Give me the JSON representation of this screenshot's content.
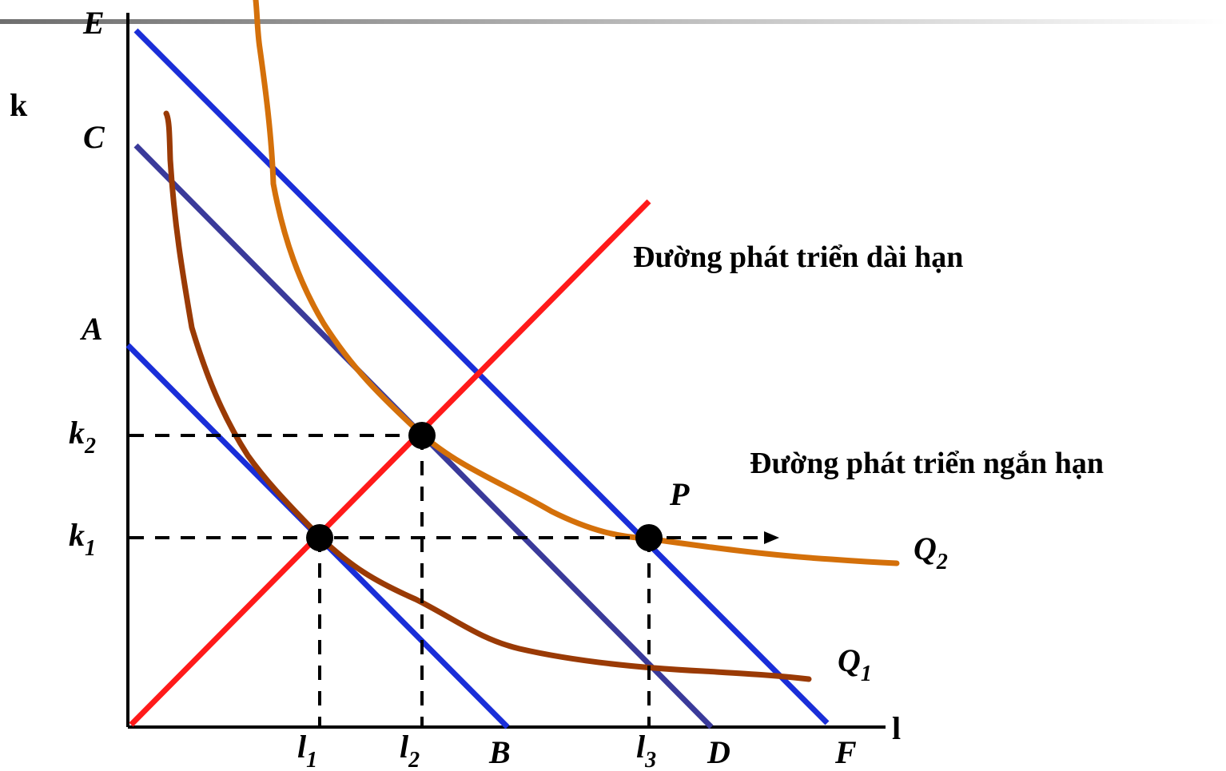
{
  "axes": {
    "y_label": "k",
    "x_label": "l"
  },
  "isocost_labels": {
    "a": "A",
    "b": "B",
    "c": "C",
    "d": "D",
    "e": "E",
    "f": "F"
  },
  "level_labels": {
    "k1": "k",
    "k1_sub": "1",
    "k2": "k",
    "k2_sub": "2",
    "l1": "l",
    "l1_sub": "1",
    "l2": "l",
    "l2_sub": "2",
    "l3": "l",
    "l3_sub": "3"
  },
  "isoquants": {
    "q1": "Q",
    "q1_sub": "1",
    "q2": "Q",
    "q2_sub": "2"
  },
  "point_p": "P",
  "paths": {
    "long_run": "Đường phát triển dài hạn",
    "short_run": "Đường phát triển ngắn hạn"
  },
  "colors": {
    "axis": "#000000",
    "isocost_outer": "#1a2ed8",
    "isocost_middle": "#3a3a9a",
    "long_run_path": "#ff1a1a",
    "isoquant_q1": "#9a3a05",
    "isoquant_q2": "#d4700a",
    "header_bar": "#7a7a7a"
  }
}
